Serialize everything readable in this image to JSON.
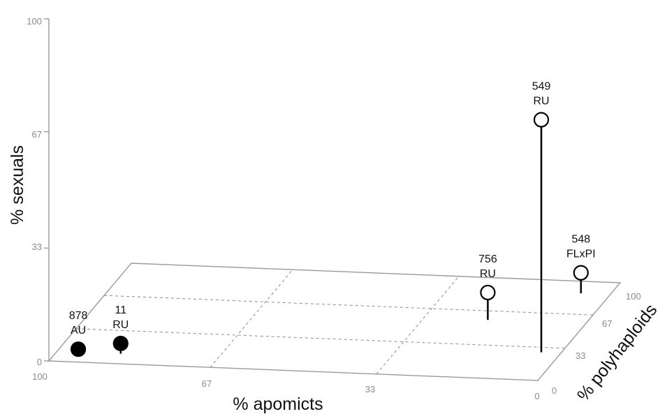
{
  "chart_data": {
    "type": "scatter",
    "subtype": "3d-stem",
    "title": "",
    "x_axis": {
      "label": "% apomicts",
      "ticks": [
        "100",
        "67",
        "33",
        "0"
      ],
      "range": [
        100,
        0
      ]
    },
    "y_axis": {
      "label": "% polyhaploids",
      "ticks": [
        "0",
        "33",
        "67",
        "100"
      ],
      "range": [
        0,
        100
      ]
    },
    "z_axis": {
      "label": "% sexuals",
      "ticks": [
        "0",
        "33",
        "67",
        "100"
      ],
      "range": [
        0,
        100
      ]
    },
    "grid": true,
    "points": [
      {
        "id": "878",
        "group": "AU",
        "apomicts": 95,
        "polyhaploids": 6,
        "sexuals": 2,
        "marker": "filled"
      },
      {
        "id": "11",
        "group": "RU",
        "apomicts": 87,
        "polyhaploids": 10,
        "sexuals": 3,
        "marker": "filled"
      },
      {
        "id": "756",
        "group": "RU",
        "apomicts": 20,
        "polyhaploids": 58,
        "sexuals": 8,
        "marker": "open"
      },
      {
        "id": "548",
        "group": "FLxPI",
        "apomicts": 6,
        "polyhaploids": 88,
        "sexuals": 6,
        "marker": "open"
      },
      {
        "id": "549",
        "group": "RU",
        "apomicts": 4,
        "polyhaploids": 28,
        "sexuals": 68,
        "marker": "open"
      }
    ]
  }
}
